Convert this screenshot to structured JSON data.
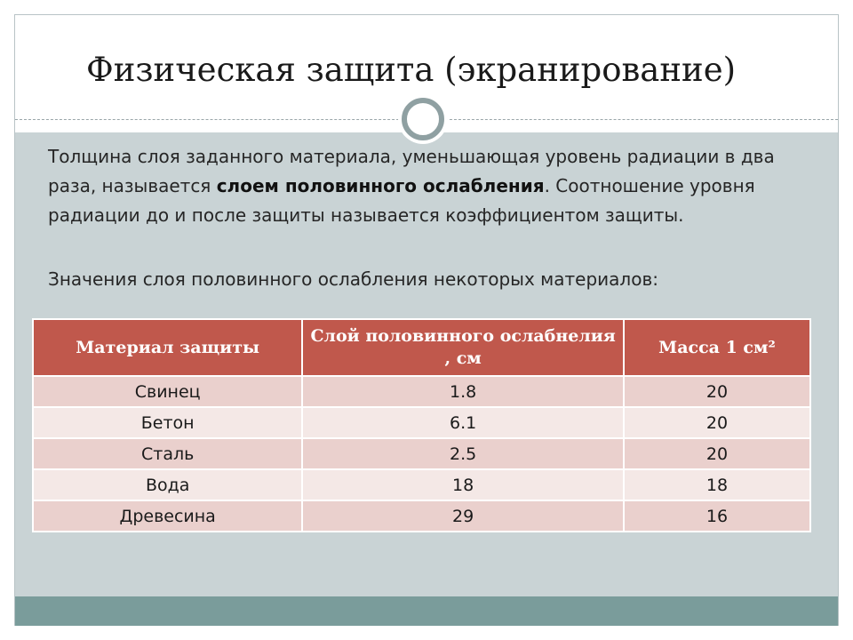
{
  "title": "Физическая защита (экранирование)",
  "paragraph1": {
    "part1": "Толщина слоя заданного материала, уменьшающая уровень радиации в два раза, называется ",
    "bold": "слоем половинного ослабления",
    "part2": ". Соотношение уровня радиации до и после защиты называется коэффициентом защиты."
  },
  "paragraph2": "Значения слоя половинного ослабления некоторых материалов:",
  "table": {
    "headers": [
      "Материал защиты",
      "Слой половинного ослабнелия , см",
      "Масса 1 см²"
    ],
    "rows": [
      [
        "Свинец",
        "1.8",
        "20"
      ],
      [
        "Бетон",
        "6.1",
        "20"
      ],
      [
        "Сталь",
        "2.5",
        "20"
      ],
      [
        "Вода",
        "18",
        "18"
      ],
      [
        "Древесина",
        "29",
        "16"
      ]
    ]
  },
  "colors": {
    "header_bg": "#c0584c",
    "row_odd": "#ead0cd",
    "row_even": "#f4e8e6",
    "content_bg": "#c9d3d5",
    "footer_band": "#7a9c9b"
  }
}
